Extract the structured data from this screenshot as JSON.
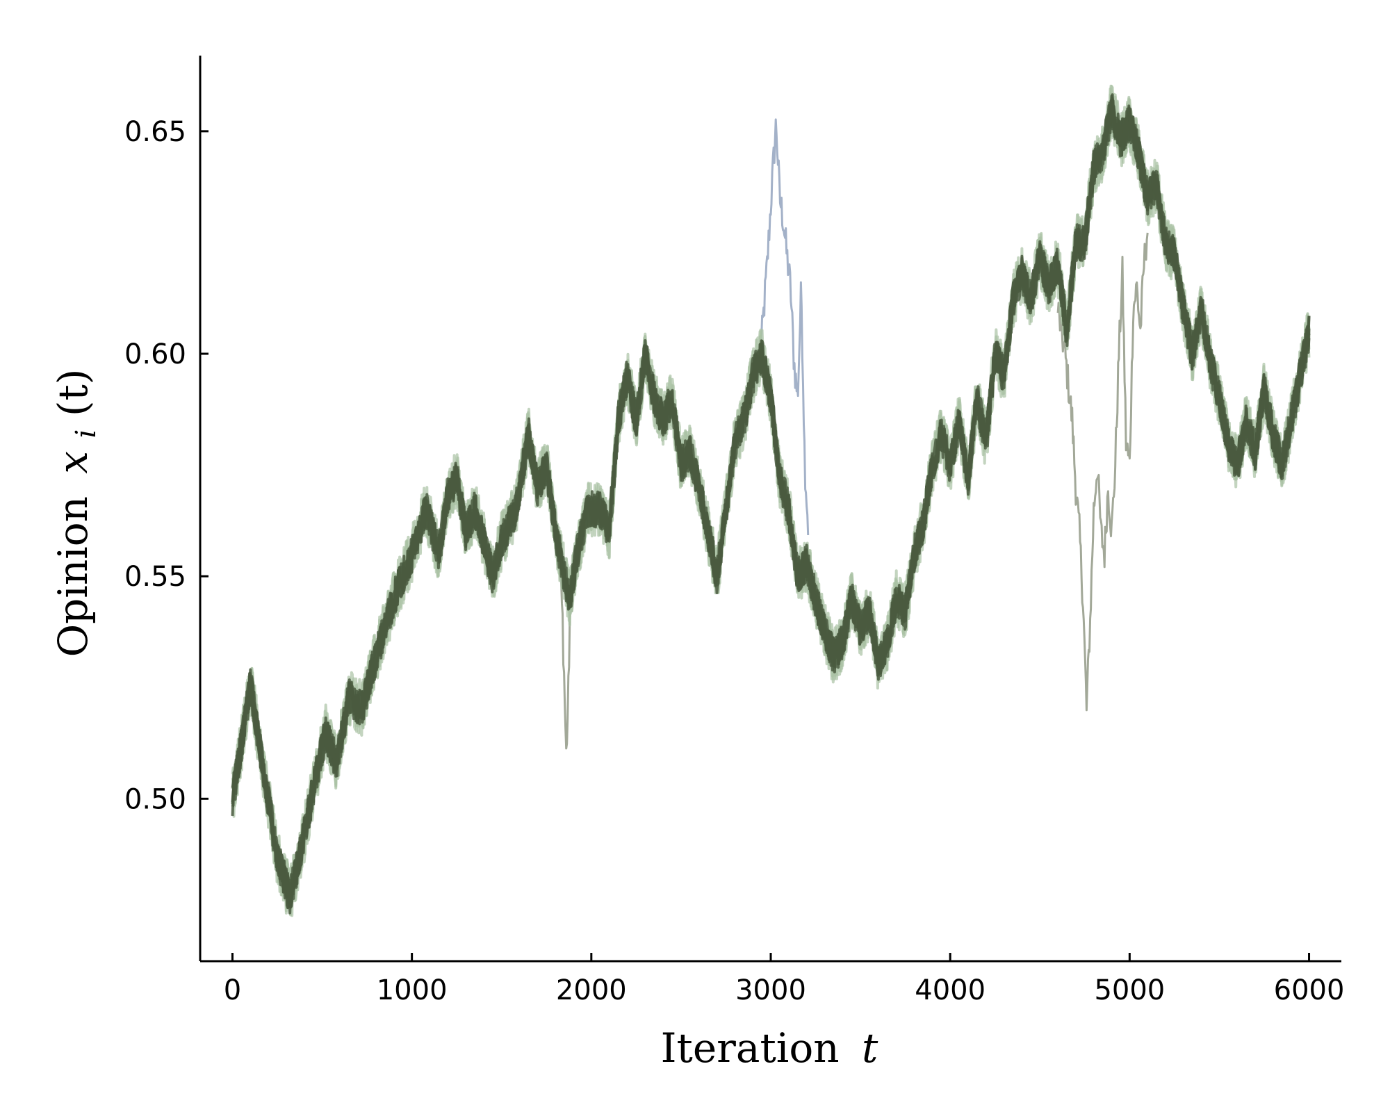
{
  "chart_data": {
    "type": "line",
    "xlabel": {
      "text": "Iteration",
      "var": "t"
    },
    "ylabel": {
      "text": "Opinion",
      "var": "x",
      "sub": "i",
      "arg": "(t)"
    },
    "xlim": [
      -180,
      6180
    ],
    "ylim": [
      0.4635,
      0.667
    ],
    "x_ticks": [
      0,
      1000,
      2000,
      3000,
      4000,
      5000,
      6000
    ],
    "x_tick_labels": [
      "0",
      "1000",
      "2000",
      "3000",
      "4000",
      "5000",
      "6000"
    ],
    "y_ticks": [
      0.5,
      0.55,
      0.6,
      0.65
    ],
    "y_tick_labels": [
      "0.50",
      "0.55",
      "0.60",
      "0.65"
    ],
    "grid": false,
    "legend": "none",
    "band_width": 0.009,
    "colors": {
      "main_band": "#a9c2a4",
      "main_line": "#4a5a40",
      "blue_agent": "#a3b1c8",
      "gray_agent": "#a2a898"
    },
    "series": [
      {
        "role": "consensus",
        "x": [
          0,
          50,
          100,
          150,
          250,
          320,
          380,
          450,
          520,
          580,
          650,
          720,
          800,
          900,
          1000,
          1080,
          1150,
          1200,
          1250,
          1300,
          1350,
          1400,
          1450,
          1500,
          1580,
          1650,
          1700,
          1750,
          1800,
          1850,
          1880,
          1920,
          1980,
          2050,
          2100,
          2150,
          2200,
          2250,
          2300,
          2350,
          2400,
          2450,
          2500,
          2550,
          2600,
          2650,
          2700,
          2750,
          2800,
          2850,
          2900,
          2950,
          3000,
          3050,
          3100,
          3150,
          3200,
          3250,
          3300,
          3350,
          3400,
          3450,
          3500,
          3550,
          3600,
          3650,
          3700,
          3750,
          3800,
          3850,
          3900,
          3950,
          4000,
          4050,
          4100,
          4150,
          4200,
          4250,
          4300,
          4350,
          4400,
          4450,
          4500,
          4550,
          4600,
          4650,
          4700,
          4750,
          4800,
          4850,
          4900,
          4950,
          5000,
          5050,
          5100,
          5150,
          5200,
          5250,
          5300,
          5350,
          5400,
          5450,
          5500,
          5550,
          5600,
          5650,
          5700,
          5750,
          5800,
          5850,
          5900,
          5950,
          6000
        ],
        "y": [
          0.5,
          0.512,
          0.526,
          0.512,
          0.487,
          0.478,
          0.488,
          0.502,
          0.515,
          0.508,
          0.523,
          0.52,
          0.532,
          0.545,
          0.555,
          0.565,
          0.555,
          0.568,
          0.572,
          0.56,
          0.565,
          0.558,
          0.55,
          0.558,
          0.565,
          0.582,
          0.57,
          0.575,
          0.56,
          0.55,
          0.545,
          0.555,
          0.565,
          0.565,
          0.56,
          0.585,
          0.595,
          0.585,
          0.6,
          0.59,
          0.585,
          0.59,
          0.575,
          0.578,
          0.57,
          0.56,
          0.55,
          0.565,
          0.58,
          0.585,
          0.595,
          0.6,
          0.59,
          0.572,
          0.565,
          0.55,
          0.553,
          0.545,
          0.538,
          0.532,
          0.535,
          0.545,
          0.538,
          0.542,
          0.53,
          0.535,
          0.545,
          0.542,
          0.555,
          0.562,
          0.575,
          0.582,
          0.575,
          0.585,
          0.572,
          0.59,
          0.58,
          0.6,
          0.595,
          0.612,
          0.618,
          0.612,
          0.622,
          0.615,
          0.62,
          0.605,
          0.625,
          0.625,
          0.642,
          0.645,
          0.655,
          0.648,
          0.652,
          0.645,
          0.635,
          0.638,
          0.625,
          0.622,
          0.61,
          0.6,
          0.61,
          0.598,
          0.59,
          0.58,
          0.575,
          0.585,
          0.578,
          0.592,
          0.582,
          0.575,
          0.585,
          0.595,
          0.605
        ]
      },
      {
        "role": "deviating-agent-blue",
        "x": [
          2940,
          2980,
          3010,
          3030,
          3050,
          3070,
          3090,
          3110,
          3130,
          3150,
          3170,
          3190,
          3210
        ],
        "y": [
          0.598,
          0.62,
          0.64,
          0.652,
          0.635,
          0.63,
          0.622,
          0.615,
          0.598,
          0.59,
          0.615,
          0.575,
          0.56
        ]
      },
      {
        "role": "deviating-agent-gray",
        "x": [
          1820,
          1840,
          1860,
          1870,
          1880,
          1900
        ],
        "y": [
          0.555,
          0.54,
          0.51,
          0.52,
          0.54,
          0.55
        ]
      },
      {
        "role": "deviating-agent-gray",
        "x": [
          4600,
          4640,
          4680,
          4700,
          4720,
          4740,
          4760,
          4780,
          4800,
          4820,
          4840,
          4860,
          4880,
          4900,
          4920,
          4940,
          4960,
          4980,
          5000,
          5020,
          5040,
          5060,
          5080,
          5100
        ],
        "y": [
          0.61,
          0.6,
          0.585,
          0.57,
          0.56,
          0.545,
          0.52,
          0.54,
          0.565,
          0.575,
          0.56,
          0.555,
          0.57,
          0.56,
          0.575,
          0.6,
          0.618,
          0.58,
          0.575,
          0.61,
          0.615,
          0.605,
          0.62,
          0.628
        ]
      }
    ]
  }
}
